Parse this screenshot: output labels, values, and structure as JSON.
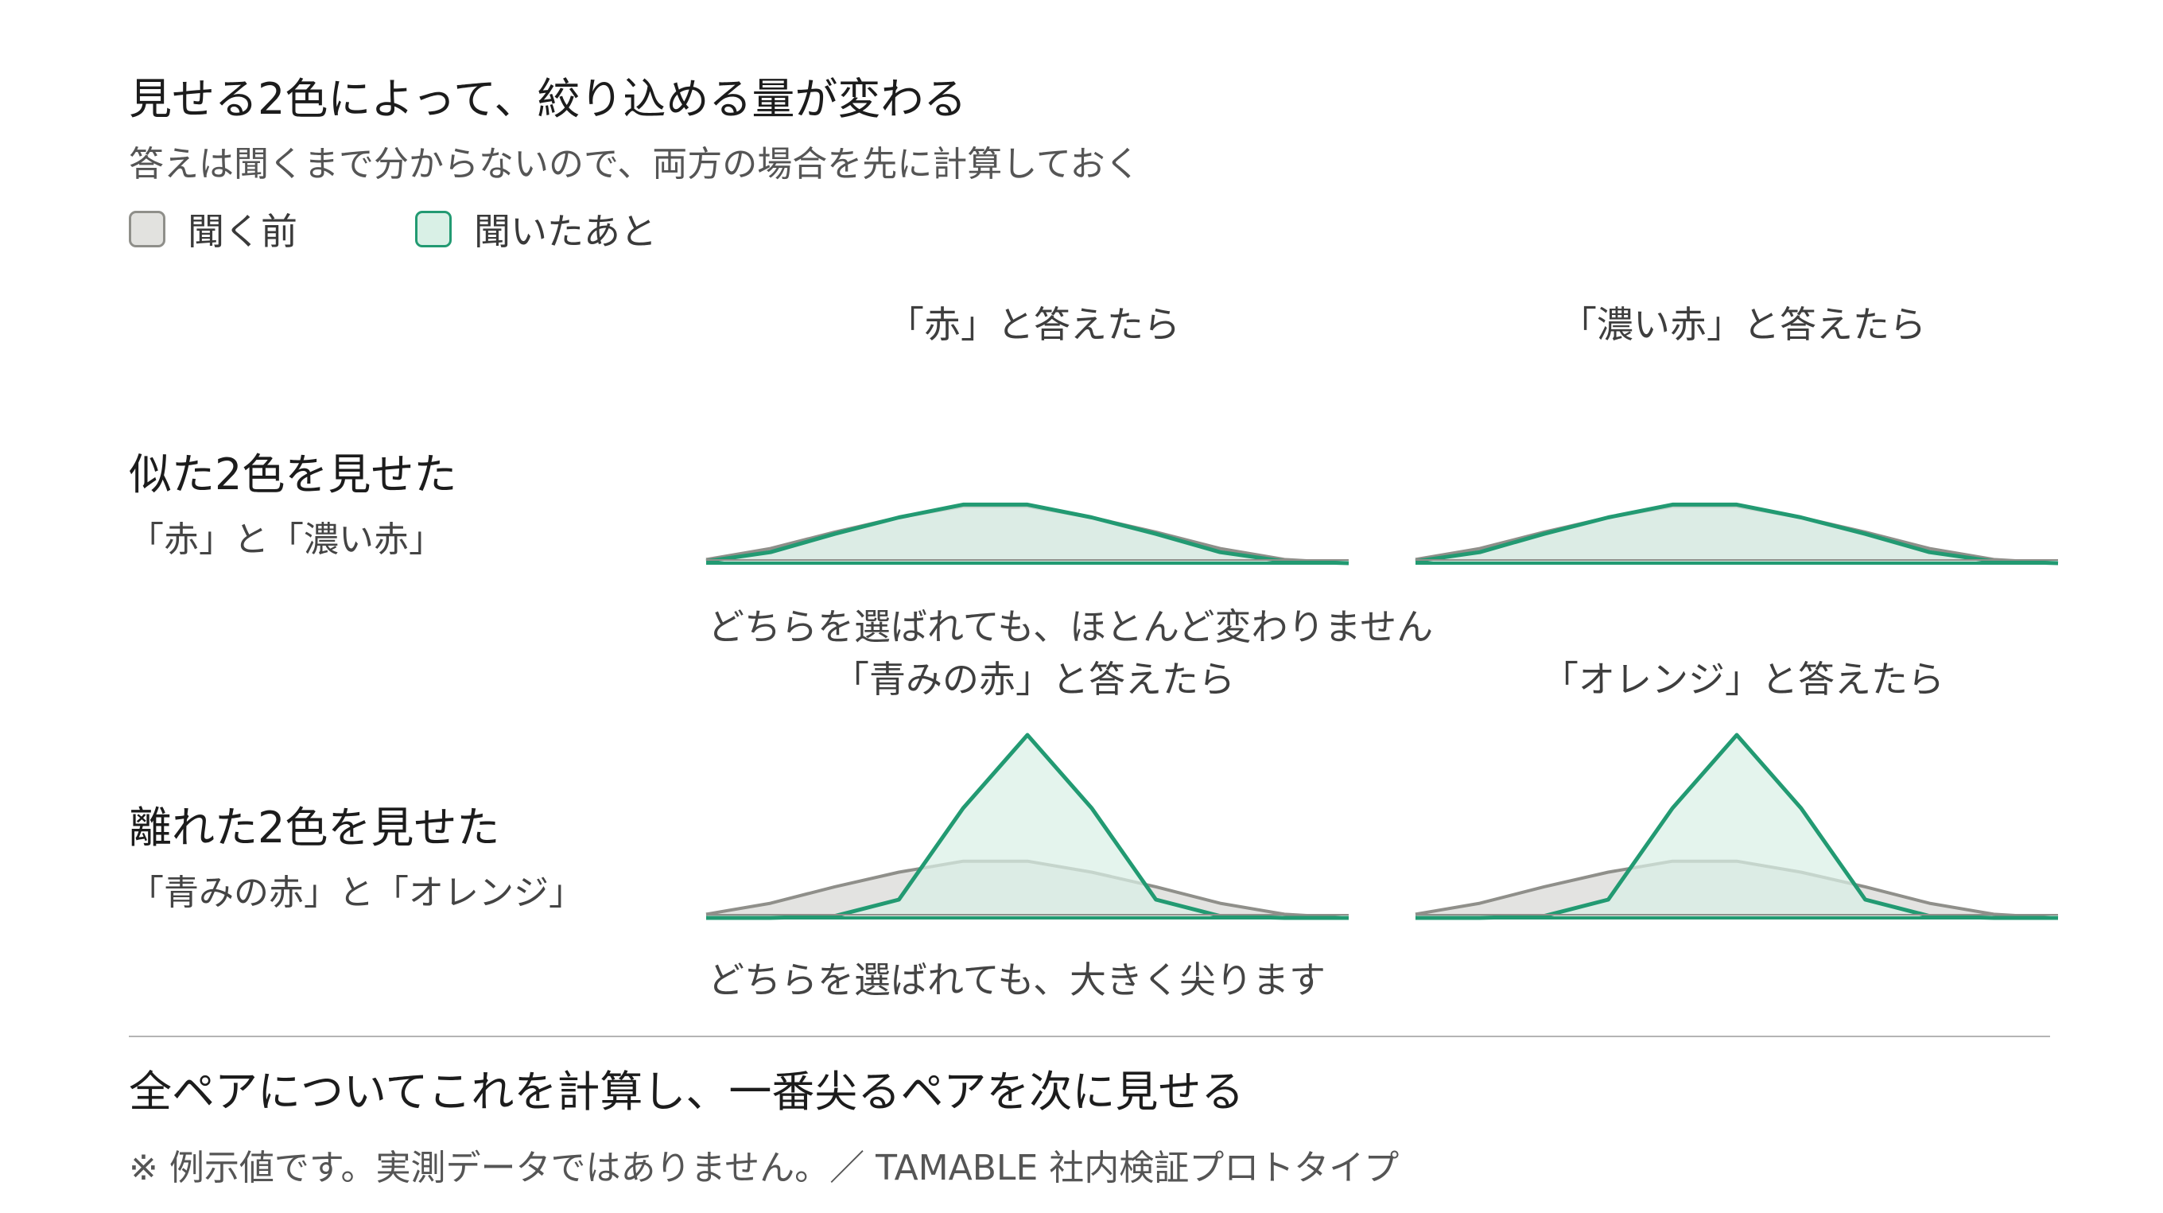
{
  "header": {
    "title": "見せる2色によって、絞り込める量が変わる",
    "subtitle": "答えは聞くまで分からないので、両方の場合を先に計算しておく"
  },
  "legend": {
    "before": {
      "label": "聞く前",
      "fill": "#e2e2df",
      "stroke": "#8f8f8a"
    },
    "after": {
      "label": "聞いたあと",
      "fill": "#d9f0e6",
      "stroke": "#229a72"
    }
  },
  "rows": [
    {
      "title": "似た2色を見せた",
      "subtitle": "「赤」と「濃い赤」",
      "note": "どちらを選ばれても、ほとんど変わりません",
      "columns": [
        "「赤」と答えたら",
        "「濃い赤」と答えたら"
      ]
    },
    {
      "title": "離れた2色を見せた",
      "subtitle": "「青みの赤」と「オレンジ」",
      "note": "どちらを選ばれても、大きく尖ります",
      "columns": [
        "「青みの赤」と答えたら",
        "「オレンジ」と答えたら"
      ]
    }
  ],
  "conclusion": "全ペアについてこれを計算し、一番尖るペアを次に見せる",
  "footnote": "※ 例示値です。実測データではありません。／ TAMABLE 社内検証プロトタイプ",
  "chart_data": {
    "type": "area",
    "x": [
      0,
      1,
      2,
      3,
      4,
      5,
      6,
      7,
      8,
      9,
      10
    ],
    "panels": [
      {
        "row": 0,
        "column": 0,
        "series": [
          {
            "name": "聞く前",
            "values": [
              0.02,
              0.08,
              0.17,
              0.25,
              0.31,
              0.31,
              0.25,
              0.17,
              0.08,
              0.02,
              0.0
            ]
          },
          {
            "name": "聞いたあと",
            "values": [
              0.01,
              0.06,
              0.16,
              0.25,
              0.32,
              0.32,
              0.25,
              0.16,
              0.06,
              0.01,
              0.0
            ]
          }
        ]
      },
      {
        "row": 0,
        "column": 1,
        "series": [
          {
            "name": "聞く前",
            "values": [
              0.02,
              0.08,
              0.17,
              0.25,
              0.31,
              0.31,
              0.25,
              0.17,
              0.08,
              0.02,
              0.0
            ]
          },
          {
            "name": "聞いたあと",
            "values": [
              0.01,
              0.06,
              0.16,
              0.25,
              0.32,
              0.32,
              0.25,
              0.16,
              0.06,
              0.01,
              0.0
            ]
          }
        ]
      },
      {
        "row": 1,
        "column": 0,
        "series": [
          {
            "name": "聞く前",
            "values": [
              0.02,
              0.08,
              0.17,
              0.25,
              0.31,
              0.31,
              0.25,
              0.17,
              0.08,
              0.02,
              0.0
            ]
          },
          {
            "name": "聞いたあと",
            "values": [
              0.0,
              0.0,
              0.01,
              0.1,
              0.6,
              1.0,
              0.6,
              0.1,
              0.01,
              0.0,
              0.0
            ]
          }
        ]
      },
      {
        "row": 1,
        "column": 1,
        "series": [
          {
            "name": "聞く前",
            "values": [
              0.02,
              0.08,
              0.17,
              0.25,
              0.31,
              0.31,
              0.25,
              0.17,
              0.08,
              0.02,
              0.0
            ]
          },
          {
            "name": "聞いたあと",
            "values": [
              0.0,
              0.0,
              0.01,
              0.1,
              0.6,
              1.0,
              0.6,
              0.1,
              0.01,
              0.0,
              0.0
            ]
          }
        ]
      }
    ]
  }
}
